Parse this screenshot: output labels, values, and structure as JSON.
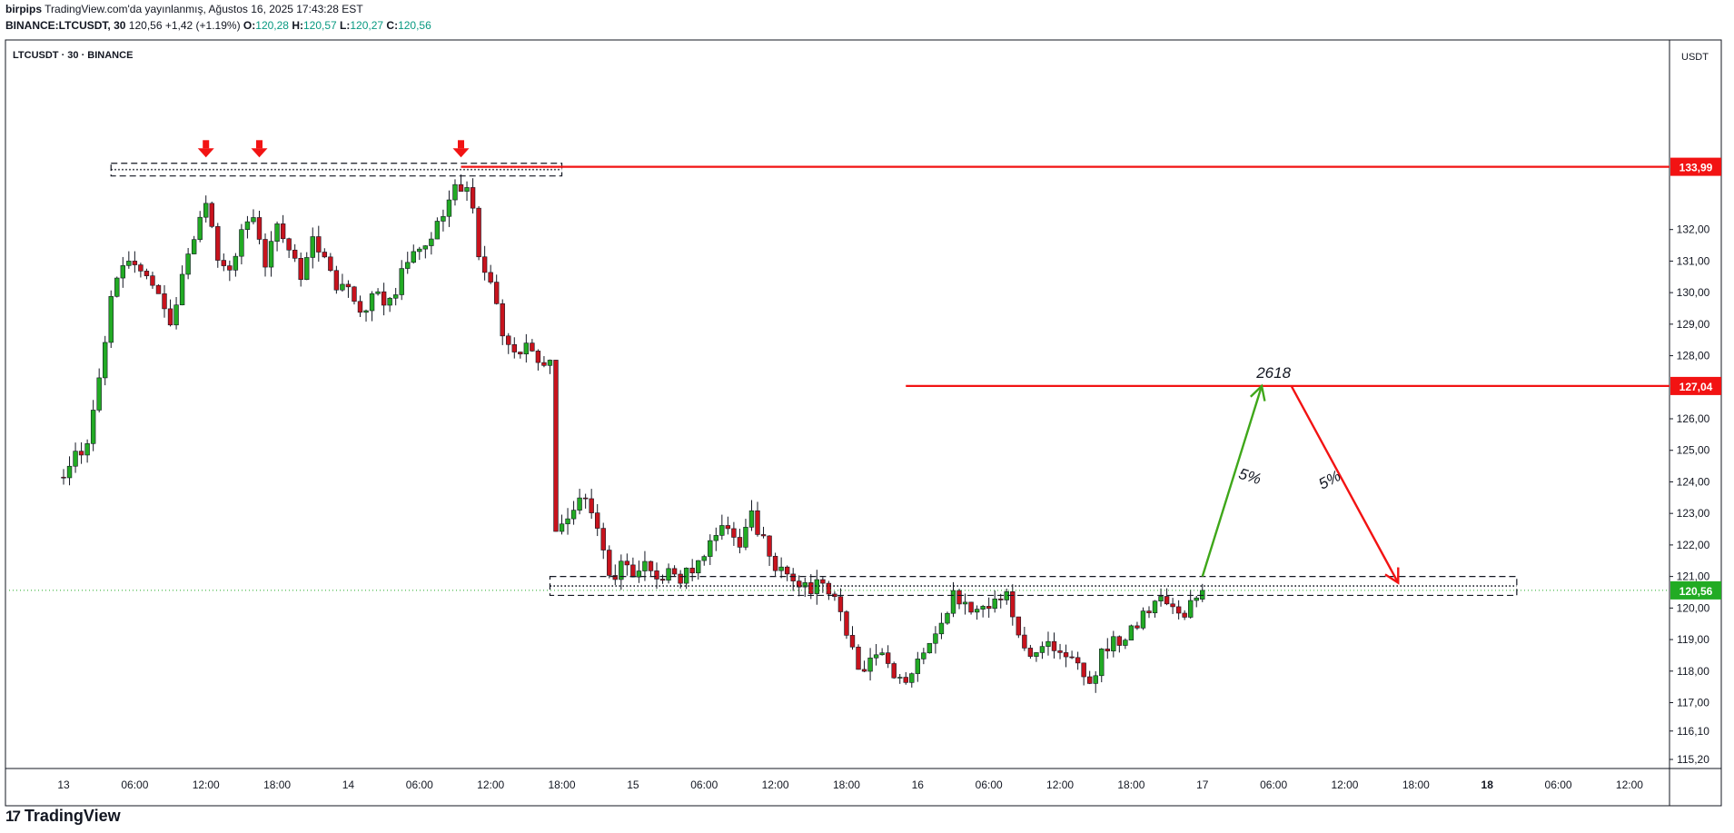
{
  "header": {
    "publisher": "birpips",
    "published_text": "TradingView.com'da yayınlanmış, Ağustos 16, 2025 17:43:28 EST",
    "symbol_full": "BINANCE:LTCUSDT, 30",
    "last": "120,56",
    "change": "+1,42 (+1.19%)",
    "o_label": "O:",
    "o_value": "120,28",
    "h_label": "H:",
    "h_value": "120,57",
    "l_label": "L:",
    "l_value": "120,27",
    "c_label": "C:",
    "c_value": "120,56"
  },
  "pane": {
    "title": "LTCUSDT · 30 · BINANCE",
    "currency": "USDT"
  },
  "footer": {
    "logo_text": "TradingView"
  },
  "colors": {
    "up": "#22ab24",
    "down": "#c8131d",
    "red_line": "#f21313",
    "green_arrow": "#3fa71a",
    "red_arrow": "#f21313",
    "last_price_label": "#22ab24"
  },
  "chart_data": {
    "type": "candlestick",
    "symbol": "LTCUSDT",
    "interval": "30",
    "exchange": "BINANCE",
    "ylim": [
      115.2,
      134.9
    ],
    "y_ticks": [
      {
        "v": 115.2,
        "t": "115,20"
      },
      {
        "v": 116.1,
        "t": "116,10"
      },
      {
        "v": 117,
        "t": "117,00"
      },
      {
        "v": 118,
        "t": "118,00"
      },
      {
        "v": 119,
        "t": "119,00"
      },
      {
        "v": 120,
        "t": "120,00"
      },
      {
        "v": 121,
        "t": "121,00"
      },
      {
        "v": 122,
        "t": "122,00"
      },
      {
        "v": 123,
        "t": "123,00"
      },
      {
        "v": 124,
        "t": "124,00"
      },
      {
        "v": 125,
        "t": "125,00"
      },
      {
        "v": 126,
        "t": "126,00"
      },
      {
        "v": 128,
        "t": "128,00"
      },
      {
        "v": 129,
        "t": "129,00"
      },
      {
        "v": 130,
        "t": "130,00"
      },
      {
        "v": 131,
        "t": "131,00"
      },
      {
        "v": 132,
        "t": "132,00"
      }
    ],
    "x_ticks": [
      {
        "bar": 0,
        "t": "13",
        "bold": false
      },
      {
        "bar": 12,
        "t": "06:00",
        "bold": false
      },
      {
        "bar": 24,
        "t": "12:00",
        "bold": false
      },
      {
        "bar": 36,
        "t": "18:00",
        "bold": false
      },
      {
        "bar": 48,
        "t": "14",
        "bold": false
      },
      {
        "bar": 60,
        "t": "06:00",
        "bold": false
      },
      {
        "bar": 72,
        "t": "12:00",
        "bold": false
      },
      {
        "bar": 84,
        "t": "18:00",
        "bold": false
      },
      {
        "bar": 96,
        "t": "15",
        "bold": false
      },
      {
        "bar": 108,
        "t": "06:00",
        "bold": false
      },
      {
        "bar": 120,
        "t": "12:00",
        "bold": false
      },
      {
        "bar": 132,
        "t": "18:00",
        "bold": false
      },
      {
        "bar": 144,
        "t": "16",
        "bold": false
      },
      {
        "bar": 156,
        "t": "06:00",
        "bold": false
      },
      {
        "bar": 168,
        "t": "12:00",
        "bold": false
      },
      {
        "bar": 180,
        "t": "18:00",
        "bold": false
      },
      {
        "bar": 192,
        "t": "17",
        "bold": false
      },
      {
        "bar": 204,
        "t": "06:00",
        "bold": false
      },
      {
        "bar": 216,
        "t": "12:00",
        "bold": false
      },
      {
        "bar": 228,
        "t": "18:00",
        "bold": false
      },
      {
        "bar": 240,
        "t": "18",
        "bold": true
      },
      {
        "bar": 252,
        "t": "06:00",
        "bold": false
      },
      {
        "bar": 264,
        "t": "12:00",
        "bold": false
      }
    ],
    "bar_count_visible": 276,
    "waypoints": [
      [
        0,
        124.3
      ],
      [
        4,
        125.2
      ],
      [
        6,
        127.5
      ],
      [
        8,
        129.7
      ],
      [
        10,
        130.9
      ],
      [
        13,
        130.6
      ],
      [
        16,
        130.1
      ],
      [
        18,
        128.9
      ],
      [
        20,
        130.6
      ],
      [
        22,
        131.5
      ],
      [
        24,
        132.9
      ],
      [
        26,
        131.2
      ],
      [
        28,
        130.7
      ],
      [
        30,
        131.8
      ],
      [
        32,
        132.3
      ],
      [
        34,
        131.0
      ],
      [
        36,
        132.2
      ],
      [
        38,
        131.5
      ],
      [
        40,
        130.4
      ],
      [
        42,
        131.6
      ],
      [
        44,
        131.1
      ],
      [
        46,
        129.9
      ],
      [
        48,
        130.3
      ],
      [
        50,
        129.2
      ],
      [
        52,
        130.1
      ],
      [
        54,
        129.6
      ],
      [
        56,
        130.1
      ],
      [
        58,
        131.0
      ],
      [
        60,
        131.3
      ],
      [
        62,
        131.8
      ],
      [
        64,
        132.4
      ],
      [
        66,
        133.3
      ],
      [
        68,
        133.4
      ],
      [
        69,
        132.6
      ],
      [
        70,
        131.1
      ],
      [
        72,
        130.2
      ],
      [
        74,
        128.7
      ],
      [
        76,
        128.1
      ],
      [
        78,
        128.3
      ],
      [
        80,
        127.9
      ],
      [
        82,
        127.9
      ],
      [
        83,
        122.3
      ],
      [
        86,
        123.3
      ],
      [
        88,
        123.6
      ],
      [
        90,
        122.6
      ],
      [
        92,
        120.9
      ],
      [
        94,
        121.3
      ],
      [
        96,
        121.2
      ],
      [
        98,
        121.5
      ],
      [
        100,
        120.9
      ],
      [
        102,
        121.2
      ],
      [
        104,
        121.0
      ],
      [
        106,
        121.3
      ],
      [
        108,
        121.8
      ],
      [
        110,
        122.3
      ],
      [
        112,
        122.5
      ],
      [
        114,
        121.9
      ],
      [
        116,
        122.9
      ],
      [
        118,
        122.1
      ],
      [
        120,
        121.0
      ],
      [
        122,
        121.2
      ],
      [
        124,
        120.8
      ],
      [
        126,
        120.6
      ],
      [
        128,
        120.8
      ],
      [
        130,
        120.4
      ],
      [
        132,
        119.2
      ],
      [
        134,
        118.0
      ],
      [
        136,
        118.4
      ],
      [
        138,
        118.6
      ],
      [
        140,
        117.7
      ],
      [
        142,
        117.6
      ],
      [
        144,
        118.4
      ],
      [
        146,
        118.8
      ],
      [
        148,
        119.5
      ],
      [
        150,
        120.6
      ],
      [
        151,
        120.3
      ],
      [
        153,
        120.0
      ],
      [
        155,
        120.0
      ],
      [
        157,
        120.2
      ],
      [
        159,
        120.4
      ],
      [
        161,
        119.3
      ],
      [
        163,
        118.6
      ],
      [
        165,
        118.9
      ],
      [
        167,
        118.6
      ],
      [
        169,
        118.4
      ],
      [
        171,
        118.2
      ],
      [
        173,
        117.4
      ],
      [
        175,
        118.5
      ],
      [
        177,
        118.9
      ],
      [
        179,
        119.1
      ],
      [
        181,
        119.5
      ],
      [
        183,
        120.0
      ],
      [
        185,
        120.4
      ],
      [
        187,
        120.1
      ],
      [
        189,
        119.8
      ],
      [
        191,
        120.3
      ],
      [
        192,
        120.56
      ]
    ],
    "seed": 73,
    "last_price": 120.56,
    "levels": [
      {
        "price": 133.99,
        "label": "133,99",
        "color": "#f21313"
      },
      {
        "price": 127.04,
        "label": "127,04",
        "color": "#f21313"
      },
      {
        "price": 120.56,
        "label": "120,56",
        "color": "#22ab24"
      }
    ],
    "annotations": {
      "level_2618": {
        "text": "2618",
        "price": 127.04,
        "bar_from": 142,
        "bar_to": 280
      },
      "resistance_top_line": {
        "price": 133.99,
        "bar_from": 67,
        "bar_to": 280
      },
      "top_zone": {
        "price_top": 134.1,
        "price_bottom": 133.7,
        "dotted": 133.9,
        "bar_from": 8,
        "bar_to": 84
      },
      "bottom_zone": {
        "price_top": 121.0,
        "price_bottom": 120.4,
        "dotted": 120.7,
        "bar_from": 82,
        "bar_to": 245
      },
      "down_markers": [
        {
          "bar": 24,
          "price": 134.2
        },
        {
          "bar": 33,
          "price": 134.2
        },
        {
          "bar": 67,
          "price": 134.2
        }
      ],
      "up_arrow": {
        "from_bar": 192,
        "from_price": 121.0,
        "to_bar": 202,
        "to_price": 127.04,
        "label": "5%"
      },
      "down_arrow": {
        "from_bar": 207,
        "from_price": 127.04,
        "to_bar": 225,
        "to_price": 120.8,
        "label": "5%"
      }
    }
  }
}
